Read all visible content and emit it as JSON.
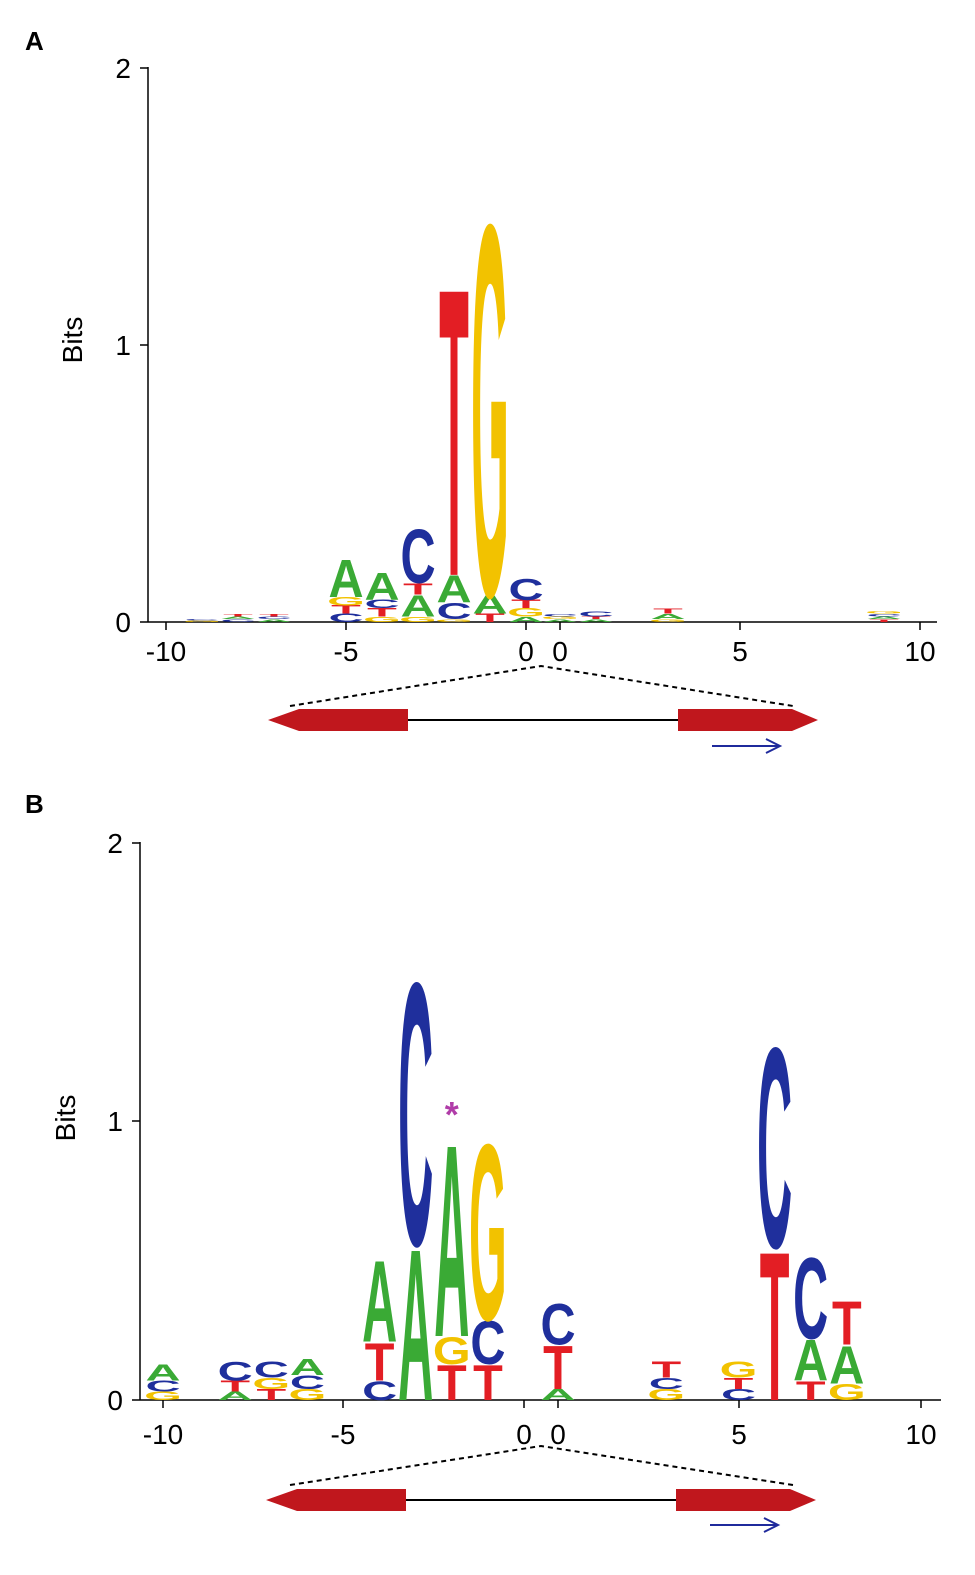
{
  "colors": {
    "A": "#3aaa35",
    "C": "#1f2f9c",
    "G": "#f2c200",
    "T": "#e31e24",
    "gene": "#c0171d",
    "arrow": "#1f2a9c",
    "asterisk": "#b03ca8"
  },
  "chart_data": [
    {
      "type": "sequence-logo",
      "panel": "A",
      "ylabel": "Bits",
      "ylim": [
        0,
        2
      ],
      "yticks": [
        "0",
        "1",
        "2"
      ],
      "xticks_left": [
        "-10",
        "-5",
        "0"
      ],
      "xticks_right": [
        "0",
        "5",
        "10"
      ],
      "annotation": "",
      "positions": [
        {
          "x": -9,
          "letters": [
            [
              "G",
              0.005
            ],
            [
              "C",
              0.005
            ]
          ]
        },
        {
          "x": -8,
          "letters": [
            [
              "C",
              0.01
            ],
            [
              "A",
              0.01
            ],
            [
              "T",
              0.01
            ]
          ]
        },
        {
          "x": -7,
          "letters": [
            [
              "A",
              0.01
            ],
            [
              "C",
              0.01
            ],
            [
              "T",
              0.01
            ]
          ]
        },
        {
          "x": -5,
          "letters": [
            [
              "C",
              0.03
            ],
            [
              "T",
              0.03
            ],
            [
              "G",
              0.03
            ],
            [
              "A",
              0.14
            ]
          ]
        },
        {
          "x": -4,
          "letters": [
            [
              "G",
              0.02
            ],
            [
              "T",
              0.03
            ],
            [
              "C",
              0.03
            ],
            [
              "A",
              0.1
            ]
          ]
        },
        {
          "x": -3,
          "letters": [
            [
              "G",
              0.02
            ],
            [
              "A",
              0.08
            ],
            [
              "T",
              0.04
            ],
            [
              "C",
              0.2
            ]
          ]
        },
        {
          "x": -2,
          "letters": [
            [
              "G",
              0.01
            ],
            [
              "C",
              0.06
            ],
            [
              "A",
              0.1
            ],
            [
              "T",
              1.07
            ]
          ]
        },
        {
          "x": -1,
          "letters": [
            [
              "T",
              0.03
            ],
            [
              "A",
              0.07
            ],
            [
              "G",
              1.38
            ]
          ]
        },
        {
          "x": 0,
          "letters": [
            [
              "A",
              0.02
            ],
            [
              "G",
              0.03
            ],
            [
              "T",
              0.03
            ],
            [
              "C",
              0.08
            ]
          ]
        },
        {
          "x": 1,
          "letters": [
            [
              "A",
              0.01
            ],
            [
              "G",
              0.01
            ],
            [
              "C",
              0.01
            ]
          ]
        },
        {
          "x": 2,
          "letters": [
            [
              "A",
              0.01
            ],
            [
              "T",
              0.01
            ],
            [
              "C",
              0.02
            ]
          ]
        },
        {
          "x": 4,
          "letters": [
            [
              "G",
              0.01
            ],
            [
              "A",
              0.02
            ],
            [
              "T",
              0.02
            ]
          ]
        },
        {
          "x": 10,
          "letters": [
            [
              "T",
              0.01
            ],
            [
              "A",
              0.01
            ],
            [
              "C",
              0.01
            ],
            [
              "G",
              0.01
            ]
          ]
        }
      ]
    },
    {
      "type": "sequence-logo",
      "panel": "B",
      "ylabel": "Bits",
      "ylim": [
        0,
        2
      ],
      "yticks": [
        "0",
        "1",
        "2"
      ],
      "xticks_left": [
        "-10",
        "-5",
        "0"
      ],
      "xticks_right": [
        "0",
        "5",
        "10"
      ],
      "annotation": "*",
      "annotation_x": -2,
      "annotation_y": 1.06,
      "positions": [
        {
          "x": -10,
          "letters": [
            [
              "G",
              0.03
            ],
            [
              "C",
              0.04
            ],
            [
              "A",
              0.06
            ]
          ]
        },
        {
          "x": -8,
          "letters": [
            [
              "A",
              0.03
            ],
            [
              "T",
              0.04
            ],
            [
              "C",
              0.07
            ]
          ]
        },
        {
          "x": -7,
          "letters": [
            [
              "T",
              0.04
            ],
            [
              "G",
              0.04
            ],
            [
              "C",
              0.06
            ]
          ]
        },
        {
          "x": -6,
          "letters": [
            [
              "G",
              0.04
            ],
            [
              "C",
              0.05
            ],
            [
              "A",
              0.06
            ]
          ]
        },
        {
          "x": -4,
          "letters": [
            [
              "C",
              0.07
            ],
            [
              "T",
              0.14
            ],
            [
              "A",
              0.3
            ]
          ]
        },
        {
          "x": -3,
          "letters": [
            [
              "A",
              0.56
            ],
            [
              "C",
              0.97
            ]
          ]
        },
        {
          "x": -2,
          "letters": [
            [
              "T",
              0.13
            ],
            [
              "G",
              0.1
            ],
            [
              "A",
              0.71
            ]
          ]
        },
        {
          "x": -1,
          "letters": [
            [
              "T",
              0.13
            ],
            [
              "C",
              0.16
            ],
            [
              "G",
              0.65
            ]
          ]
        },
        {
          "x": 1,
          "letters": [
            [
              "A",
              0.04
            ],
            [
              "T",
              0.16
            ],
            [
              "C",
              0.15
            ]
          ]
        },
        {
          "x": 4,
          "letters": [
            [
              "G",
              0.04
            ],
            [
              "C",
              0.04
            ],
            [
              "T",
              0.06
            ]
          ]
        },
        {
          "x": 6,
          "letters": [
            [
              "C",
              0.04
            ],
            [
              "T",
              0.04
            ],
            [
              "G",
              0.06
            ]
          ]
        },
        {
          "x": 7,
          "letters": [
            [
              "T",
              0.55
            ],
            [
              "C",
              0.74
            ]
          ]
        },
        {
          "x": 8,
          "letters": [
            [
              "T",
              0.07
            ],
            [
              "A",
              0.15
            ],
            [
              "C",
              0.3
            ]
          ]
        },
        {
          "x": 9,
          "letters": [
            [
              "G",
              0.06
            ],
            [
              "A",
              0.14
            ],
            [
              "T",
              0.16
            ]
          ]
        }
      ]
    }
  ]
}
